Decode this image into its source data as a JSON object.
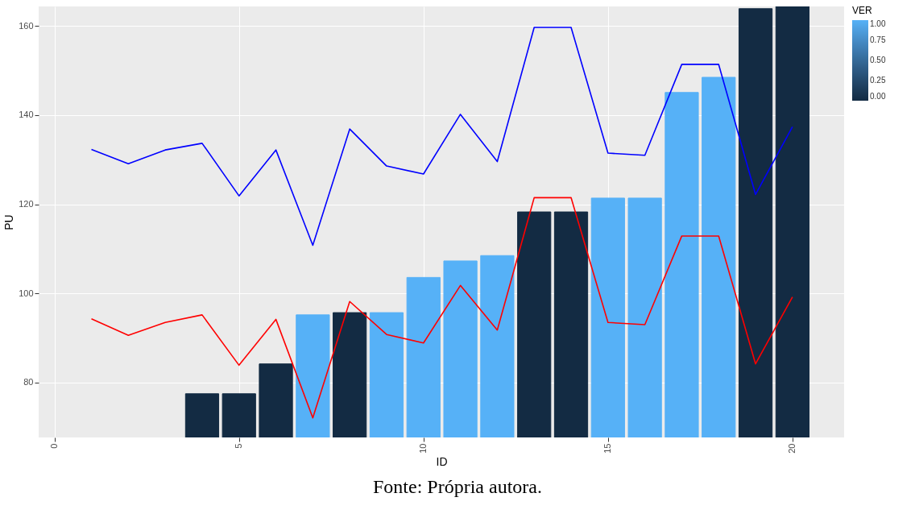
{
  "chart_data": {
    "type": "bar",
    "xlabel": "ID",
    "ylabel": "PU",
    "clabel": "VER",
    "annotations": [
      "Fonte: Própria autora."
    ],
    "x": [
      1,
      2,
      3,
      4,
      5,
      6,
      7,
      8,
      9,
      10,
      11,
      12,
      13,
      14,
      15,
      16,
      17,
      18,
      19,
      20
    ],
    "xlim": [
      -0.43,
      21.4
    ],
    "xticks": [
      0,
      5,
      10,
      15,
      20
    ],
    "ylim": [
      67.7,
      164.4
    ],
    "yticks": [
      80,
      100,
      120,
      140,
      160
    ],
    "grid": true,
    "clim": [
      0,
      1
    ],
    "cticks": [
      {
        "value": 0,
        "label": "0.00"
      },
      {
        "value": 0.25,
        "label": "0.25"
      },
      {
        "value": 0.5,
        "label": "0.50"
      },
      {
        "value": 0.75,
        "label": "0.75"
      },
      {
        "value": 1,
        "label": "1.00"
      }
    ],
    "series": [
      {
        "cvalues": [
          null,
          null,
          null,
          0,
          0,
          0,
          1,
          0,
          1,
          1,
          1,
          1,
          0,
          0,
          1,
          1,
          1,
          1,
          0,
          0
        ],
        "values": [
          null,
          null,
          null,
          77.5,
          77.5,
          84.2,
          95.2,
          95.7,
          95.7,
          103.6,
          107.3,
          108.5,
          118.3,
          118.3,
          121.4,
          121.4,
          145.1,
          148.5,
          163.9,
          164.4
        ],
        "colors": [
          null,
          null,
          null,
          "#132b43",
          "#132b43",
          "#132b43",
          "#56b1f7",
          "#132b43",
          "#56b1f7",
          "#56b1f7",
          "#56b1f7",
          "#56b1f7",
          "#132b43",
          "#132b43",
          "#56b1f7",
          "#56b1f7",
          "#56b1f7",
          "#56b1f7",
          "#132b43",
          "#132b43"
        ]
      },
      {
        "type": "line",
        "color": "#0000ff",
        "values": [
          132.3,
          129.1,
          132.2,
          133.7,
          121.9,
          132.2,
          110.8,
          136.9,
          128.6,
          126.8,
          140.2,
          129.6,
          159.7,
          159.7,
          131.5,
          131.0,
          151.4,
          151.4,
          122.2,
          137.4
        ]
      },
      {
        "type": "line",
        "color": "#ff0000",
        "values": [
          94.3,
          90.6,
          93.5,
          95.2,
          83.9,
          94.2,
          72.1,
          98.2,
          90.8,
          88.9,
          101.8,
          91.8,
          121.5,
          121.5,
          93.5,
          93.0,
          112.9,
          112.9,
          84.2,
          99.2
        ]
      }
    ]
  }
}
